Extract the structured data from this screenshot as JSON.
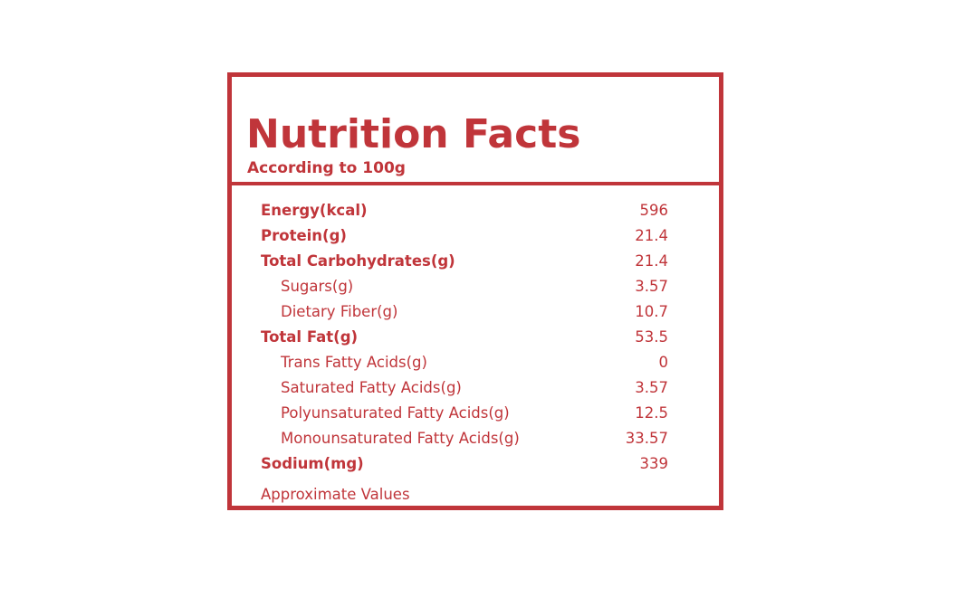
{
  "label": {
    "title": "Nutrition Facts",
    "subtitle": "According to 100g",
    "footnote": "Approximate Values",
    "accent_color": "#c0353a"
  },
  "rows": [
    {
      "label": "Energy(kcal)",
      "value": "596"
    },
    {
      "label": "Protein(g)",
      "value": "21.4"
    },
    {
      "label": "Total Carbohydrates(g)",
      "value": "21.4"
    },
    {
      "label": "Sugars(g)",
      "value": "3.57"
    },
    {
      "label": "Dietary Fiber(g)",
      "value": "10.7"
    },
    {
      "label": "Total Fat(g)",
      "value": "53.5"
    },
    {
      "label": "Trans Fatty Acids(g)",
      "value": "0"
    },
    {
      "label": "Saturated Fatty Acids(g)",
      "value": "3.57"
    },
    {
      "label": "Polyunsaturated Fatty Acids(g)",
      "value": "12.5"
    },
    {
      "label": "Monounsaturated Fatty Acids(g)",
      "value": "33.57"
    },
    {
      "label": "Sodium(mg)",
      "value": "339"
    }
  ]
}
